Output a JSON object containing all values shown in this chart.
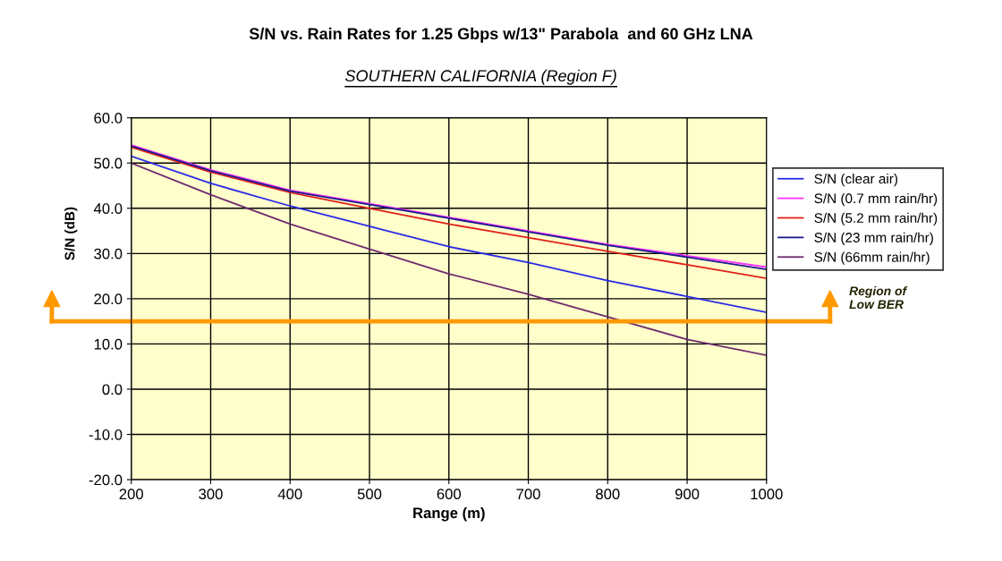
{
  "chart_data": {
    "type": "line",
    "title": "S/N vs. Rain Rates for 1.25 Gbps w/13\" Parabola  and 60 GHz LNA",
    "subtitle": "SOUTHERN CALIFORNIA (Region F)",
    "xlabel": "Range (m)",
    "ylabel": "S/N (dB)",
    "x": [
      200,
      300,
      400,
      500,
      600,
      700,
      800,
      900,
      1000
    ],
    "series": [
      {
        "name": "S/N (clear air)",
        "color": "#2a2ae6",
        "values": [
          51.5,
          45.5,
          40.5,
          36,
          31.5,
          28,
          24,
          20.5,
          17
        ]
      },
      {
        "name": "S/N (0.7 mm rain/hr)",
        "color": "#ff33ff",
        "values": [
          54,
          48.5,
          44,
          41,
          38,
          35,
          32,
          29.5,
          27
        ]
      },
      {
        "name": "S/N (5.2 mm rain/hr)",
        "color": "#e0201a",
        "values": [
          53.5,
          48,
          43.5,
          40,
          36.5,
          33.5,
          30.5,
          27.5,
          24.5
        ]
      },
      {
        "name": "S/N (23 mm rain/hr)",
        "color": "#1a1a8c",
        "values": [
          53.8,
          48.3,
          43.8,
          40.8,
          37.8,
          34.8,
          31.8,
          29.2,
          26.5
        ]
      },
      {
        "name": "S/N (66mm rain/hr)",
        "color": "#6e2a6e",
        "values": [
          50,
          43,
          36.5,
          31,
          25.5,
          21,
          16,
          11,
          7.5
        ]
      }
    ],
    "xlim": [
      200,
      1000
    ],
    "xticks": [
      200,
      300,
      400,
      500,
      600,
      700,
      800,
      900,
      1000
    ],
    "ylim": [
      -20,
      60
    ],
    "yticks": [
      {
        "value": -20,
        "label": "-20.0"
      },
      {
        "value": -10,
        "label": "-10.0"
      },
      {
        "value": 0,
        "label": "0.0"
      },
      {
        "value": 10,
        "label": "10.0"
      },
      {
        "value": 20,
        "label": "20.0"
      },
      {
        "value": 30,
        "label": "30.0"
      },
      {
        "value": 40,
        "label": "40.0"
      },
      {
        "value": 50,
        "label": "50.0"
      },
      {
        "value": 60,
        "label": "60.0"
      }
    ],
    "grid": true,
    "legend": "right",
    "marker": "none",
    "line_style": "solid",
    "ref_lines": [
      {
        "axis": "y",
        "value": 15,
        "label": "Region of\nLow BER",
        "color": "#ff9900"
      }
    ]
  }
}
